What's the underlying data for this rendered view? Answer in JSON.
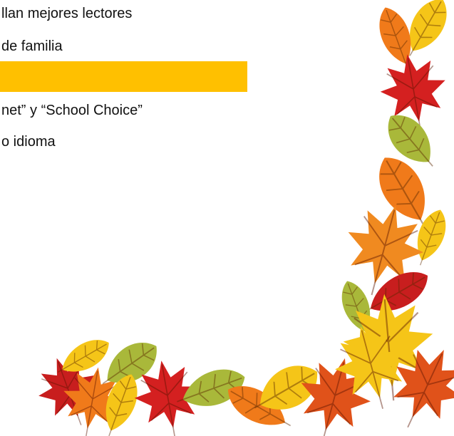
{
  "document": {
    "lines": [
      "llan mejores lectores",
      "de familia",
      "net” y “School Choice”",
      "o idioma"
    ]
  }
}
